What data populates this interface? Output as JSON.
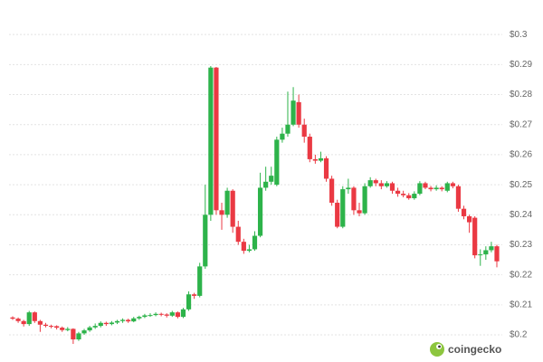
{
  "chart_data": {
    "type": "candlestick",
    "ylim": [
      0.197,
      0.31
    ],
    "yticks": [
      {
        "value": 0.2,
        "label": "$0.2"
      },
      {
        "value": 0.21,
        "label": "$0.21"
      },
      {
        "value": 0.22,
        "label": "$0.22"
      },
      {
        "value": 0.23,
        "label": "$0.23"
      },
      {
        "value": 0.24,
        "label": "$0.24"
      },
      {
        "value": 0.25,
        "label": "$0.25"
      },
      {
        "value": 0.26,
        "label": "$0.26"
      },
      {
        "value": 0.27,
        "label": "$0.27"
      },
      {
        "value": 0.28,
        "label": "$0.28"
      },
      {
        "value": 0.29,
        "label": "$0.29"
      },
      {
        "value": 0.3,
        "label": "$0.3"
      }
    ],
    "grid": true,
    "up_color": "#2db34a",
    "down_color": "#ea3943",
    "watermark": "coingecko",
    "open": [
      0.2058,
      0.2054,
      0.2046,
      0.2036,
      0.2075,
      0.2046,
      0.2034,
      0.203,
      0.2029,
      0.2024,
      0.2016,
      0.202,
      0.1985,
      0.2005,
      0.2015,
      0.2025,
      0.203,
      0.204,
      0.2036,
      0.2041,
      0.2046,
      0.205,
      0.2045,
      0.2055,
      0.206,
      0.2065,
      0.2066,
      0.207,
      0.2068,
      0.2064,
      0.2075,
      0.206,
      0.2085,
      0.2135,
      0.213,
      0.2228,
      0.24,
      0.289,
      0.2415,
      0.24,
      0.248,
      0.236,
      0.231,
      0.228,
      0.2285,
      0.233,
      0.249,
      0.251,
      0.25,
      0.265,
      0.267,
      0.27,
      0.2775,
      0.27,
      0.266,
      0.2585,
      0.258,
      0.2588,
      0.252,
      0.244,
      0.236,
      0.2485,
      0.249,
      0.2415,
      0.2405,
      0.2495,
      0.2515,
      0.2505,
      0.2495,
      0.2505,
      0.248,
      0.247,
      0.2465,
      0.2455,
      0.247,
      0.2505,
      0.249,
      0.2485,
      0.249,
      0.248,
      0.2505,
      0.2495,
      0.242,
      0.2395,
      0.239,
      0.2265,
      0.2268,
      0.2282,
      0.2295
    ],
    "high": [
      0.2062,
      0.2058,
      0.205,
      0.208,
      0.2078,
      0.205,
      0.204,
      0.2034,
      0.2032,
      0.2028,
      0.2026,
      0.2022,
      0.201,
      0.202,
      0.203,
      0.2038,
      0.2045,
      0.2044,
      0.2046,
      0.205,
      0.2055,
      0.2054,
      0.206,
      0.2064,
      0.207,
      0.2072,
      0.2075,
      0.2074,
      0.2072,
      0.208,
      0.2078,
      0.209,
      0.2145,
      0.214,
      0.224,
      0.25,
      0.2895,
      0.2892,
      0.244,
      0.249,
      0.2485,
      0.238,
      0.232,
      0.23,
      0.2345,
      0.254,
      0.256,
      0.256,
      0.266,
      0.269,
      0.281,
      0.2825,
      0.28,
      0.272,
      0.267,
      0.26,
      0.261,
      0.2595,
      0.253,
      0.245,
      0.2495,
      0.252,
      0.2495,
      0.244,
      0.2505,
      0.2525,
      0.252,
      0.2515,
      0.2512,
      0.251,
      0.249,
      0.248,
      0.2472,
      0.2478,
      0.2512,
      0.251,
      0.2496,
      0.2498,
      0.2495,
      0.251,
      0.251,
      0.25,
      0.243,
      0.24,
      0.2395,
      0.2285,
      0.2295,
      0.231,
      0.23
    ],
    "low": [
      0.205,
      0.204,
      0.2028,
      0.203,
      0.204,
      0.201,
      0.2025,
      0.2022,
      0.2018,
      0.201,
      0.2012,
      0.197,
      0.198,
      0.2,
      0.201,
      0.202,
      0.2025,
      0.203,
      0.2032,
      0.2036,
      0.204,
      0.204,
      0.2042,
      0.205,
      0.2056,
      0.206,
      0.2062,
      0.2062,
      0.2058,
      0.206,
      0.2055,
      0.2056,
      0.208,
      0.212,
      0.2125,
      0.222,
      0.238,
      0.24,
      0.235,
      0.239,
      0.234,
      0.23,
      0.227,
      0.2275,
      0.228,
      0.2325,
      0.248,
      0.25,
      0.2495,
      0.264,
      0.266,
      0.2695,
      0.269,
      0.264,
      0.2575,
      0.257,
      0.2575,
      0.251,
      0.243,
      0.2355,
      0.2355,
      0.247,
      0.24,
      0.2395,
      0.24,
      0.249,
      0.2495,
      0.2485,
      0.249,
      0.247,
      0.246,
      0.2458,
      0.245,
      0.245,
      0.2465,
      0.2485,
      0.2478,
      0.248,
      0.2478,
      0.2475,
      0.2488,
      0.241,
      0.2385,
      0.234,
      0.2255,
      0.223,
      0.225,
      0.2275,
      0.2225
    ],
    "close": [
      0.2054,
      0.2046,
      0.2036,
      0.2075,
      0.2046,
      0.2034,
      0.203,
      0.2029,
      0.2024,
      0.2016,
      0.202,
      0.1985,
      0.2005,
      0.2015,
      0.2025,
      0.203,
      0.204,
      0.2036,
      0.2041,
      0.2046,
      0.205,
      0.2045,
      0.2055,
      0.206,
      0.2065,
      0.2066,
      0.207,
      0.2068,
      0.2064,
      0.2075,
      0.206,
      0.2085,
      0.2135,
      0.213,
      0.2228,
      0.24,
      0.289,
      0.2415,
      0.24,
      0.248,
      0.236,
      0.231,
      0.228,
      0.2285,
      0.233,
      0.249,
      0.251,
      0.253,
      0.265,
      0.267,
      0.27,
      0.278,
      0.27,
      0.266,
      0.2585,
      0.258,
      0.2588,
      0.252,
      0.244,
      0.236,
      0.2485,
      0.249,
      0.2415,
      0.2405,
      0.2495,
      0.2515,
      0.2505,
      0.2495,
      0.2505,
      0.248,
      0.247,
      0.2465,
      0.2455,
      0.247,
      0.2505,
      0.249,
      0.2485,
      0.249,
      0.2485,
      0.2505,
      0.2495,
      0.242,
      0.2395,
      0.2375,
      0.2265,
      0.2268,
      0.2282,
      0.2295,
      0.2245
    ]
  }
}
